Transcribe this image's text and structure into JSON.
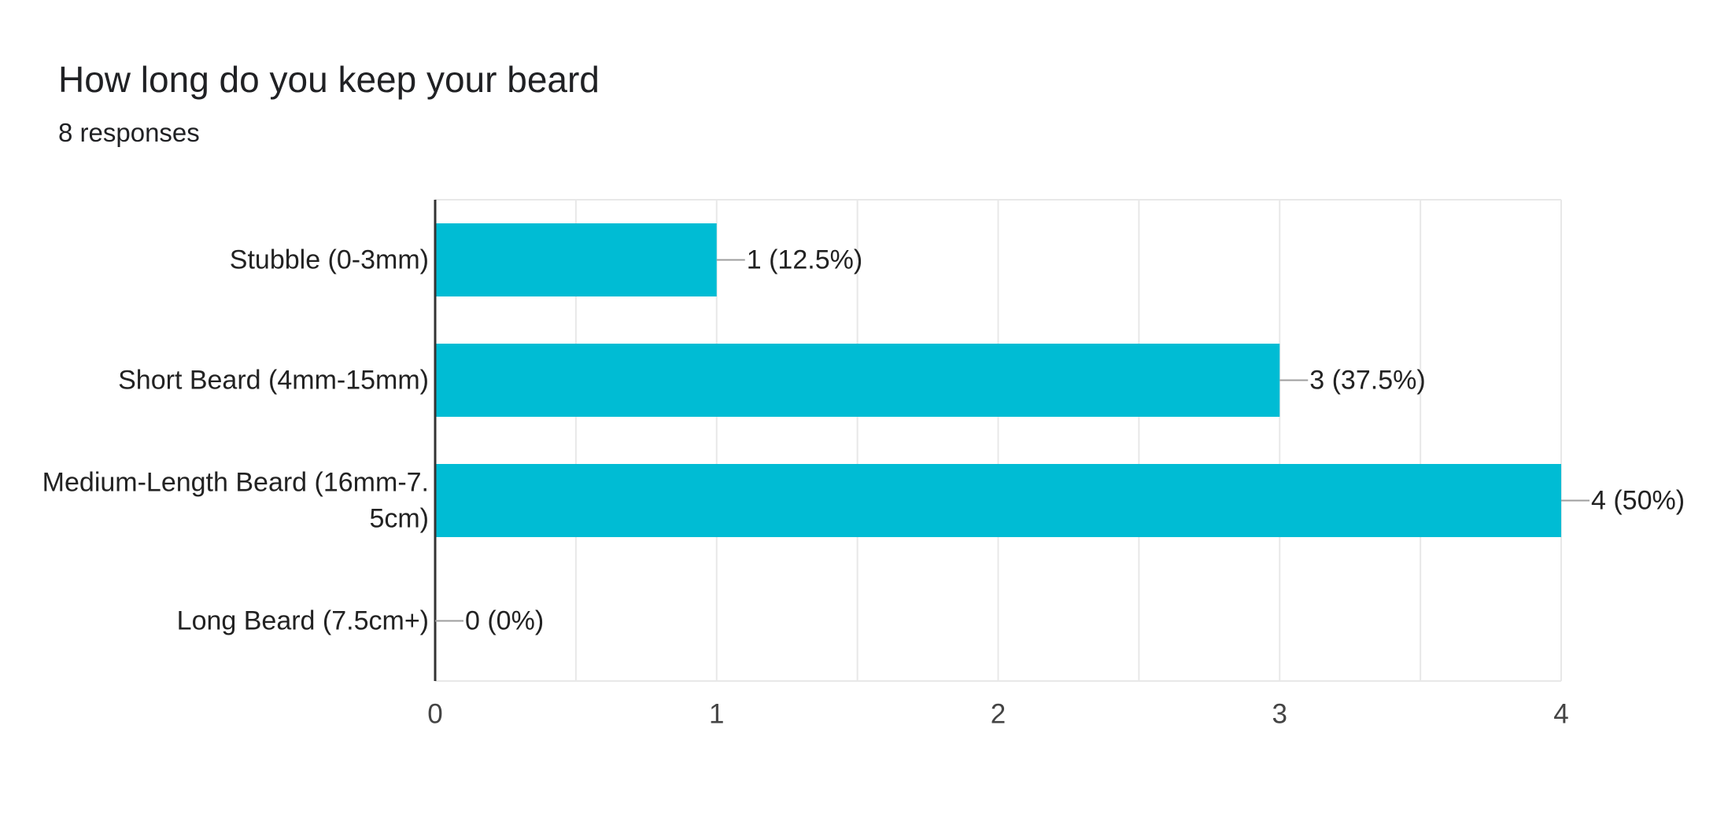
{
  "header": {
    "title": "How long do you keep your beard",
    "subtitle": "8 responses"
  },
  "colors": {
    "bar": "#00bcd4",
    "grid": "#e8e8e8",
    "axis": "#333333",
    "leader": "#9e9e9e"
  },
  "chart_data": {
    "type": "bar",
    "orientation": "horizontal",
    "title": "How long do you keep your beard",
    "subtitle": "8 responses",
    "categories": [
      [
        "Stubble (0-3mm)"
      ],
      [
        "Short Beard (4mm-15mm)"
      ],
      [
        "Medium-Length Beard (16mm-7.",
        "5cm)"
      ],
      [
        "Long Beard (7.5cm+)"
      ]
    ],
    "values": [
      1,
      3,
      4,
      0
    ],
    "data_labels": [
      "1 (12.5%)",
      "3 (37.5%)",
      "4 (50%)",
      "0 (0%)"
    ],
    "xlim": [
      0,
      4
    ],
    "xticks": [
      0,
      1,
      2,
      3,
      4
    ],
    "xtick_labels": [
      "0",
      "1",
      "2",
      "3",
      "4"
    ],
    "minor_grid_step": 0.5,
    "grid": true,
    "legend": "none",
    "xlabel": "",
    "ylabel": ""
  }
}
